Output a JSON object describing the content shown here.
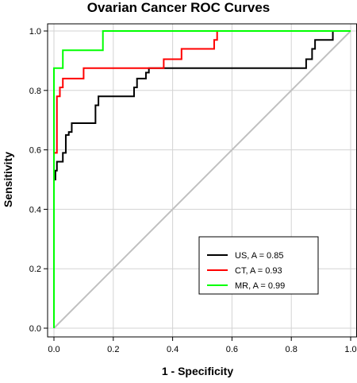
{
  "chart_data": {
    "type": "line",
    "title": "Ovarian Cancer ROC Curves",
    "xlabel": "1 - Specificity",
    "ylabel": "Sensitivity",
    "xlim": [
      0,
      1
    ],
    "ylim": [
      0,
      1
    ],
    "xticks": [
      "0.0",
      "0.2",
      "0.4",
      "0.6",
      "0.8",
      "1.0"
    ],
    "yticks": [
      "0.0",
      "0.2",
      "0.4",
      "0.6",
      "0.8",
      "1.0"
    ],
    "grid": true,
    "legend_position": "bottom-right",
    "reference_line": {
      "from": [
        0,
        0
      ],
      "to": [
        1,
        1
      ],
      "color": "#c0c0c0"
    },
    "series": [
      {
        "name": "US, A = 0.85",
        "color": "#000000",
        "points": [
          [
            0,
            0
          ],
          [
            0,
            0.5
          ],
          [
            0.005,
            0.5
          ],
          [
            0.005,
            0.53
          ],
          [
            0.01,
            0.53
          ],
          [
            0.01,
            0.56
          ],
          [
            0.03,
            0.56
          ],
          [
            0.03,
            0.59
          ],
          [
            0.04,
            0.59
          ],
          [
            0.04,
            0.65
          ],
          [
            0.05,
            0.65
          ],
          [
            0.05,
            0.66
          ],
          [
            0.06,
            0.66
          ],
          [
            0.06,
            0.69
          ],
          [
            0.14,
            0.69
          ],
          [
            0.14,
            0.75
          ],
          [
            0.15,
            0.75
          ],
          [
            0.15,
            0.78
          ],
          [
            0.27,
            0.78
          ],
          [
            0.27,
            0.81
          ],
          [
            0.28,
            0.81
          ],
          [
            0.28,
            0.84
          ],
          [
            0.31,
            0.84
          ],
          [
            0.31,
            0.86
          ],
          [
            0.32,
            0.86
          ],
          [
            0.32,
            0.875
          ],
          [
            0.85,
            0.875
          ],
          [
            0.85,
            0.905
          ],
          [
            0.87,
            0.905
          ],
          [
            0.87,
            0.94
          ],
          [
            0.88,
            0.94
          ],
          [
            0.88,
            0.97
          ],
          [
            0.94,
            0.97
          ],
          [
            0.94,
            1.0
          ],
          [
            1.0,
            1.0
          ]
        ]
      },
      {
        "name": "CT, A = 0.93",
        "color": "#ff0000",
        "points": [
          [
            0,
            0
          ],
          [
            0,
            0.59
          ],
          [
            0.01,
            0.59
          ],
          [
            0.01,
            0.78
          ],
          [
            0.02,
            0.78
          ],
          [
            0.02,
            0.81
          ],
          [
            0.03,
            0.81
          ],
          [
            0.03,
            0.84
          ],
          [
            0.1,
            0.84
          ],
          [
            0.1,
            0.875
          ],
          [
            0.37,
            0.875
          ],
          [
            0.37,
            0.905
          ],
          [
            0.43,
            0.905
          ],
          [
            0.43,
            0.94
          ],
          [
            0.54,
            0.94
          ],
          [
            0.54,
            0.97
          ],
          [
            0.55,
            0.97
          ],
          [
            0.55,
            1.0
          ],
          [
            1.0,
            1.0
          ]
        ]
      },
      {
        "name": "MR, A = 0.99",
        "color": "#00ff00",
        "points": [
          [
            0,
            0
          ],
          [
            0,
            0.875
          ],
          [
            0.03,
            0.875
          ],
          [
            0.03,
            0.935
          ],
          [
            0.165,
            0.935
          ],
          [
            0.165,
            1.0
          ],
          [
            1.0,
            1.0
          ]
        ]
      }
    ]
  }
}
